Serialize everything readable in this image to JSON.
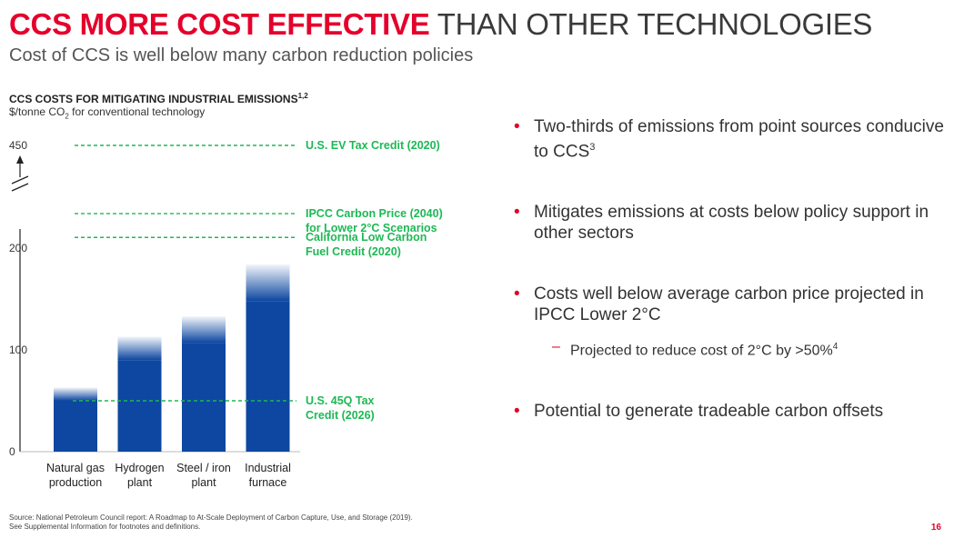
{
  "header": {
    "title_strong": "CCS MORE COST EFFECTIVE",
    "title_light": "THAN OTHER TECHNOLOGIES",
    "subtitle": "Cost of CCS is well below many carbon reduction policies"
  },
  "chart_data": {
    "type": "bar",
    "title": "CCS COSTS FOR MITIGATING INDUSTRIAL EMISSIONS",
    "title_sup": "1,2",
    "unit_prefix": "$/tonne CO",
    "unit_sub": "2",
    "unit_suffix": " for conventional technology",
    "categories": [
      [
        "Natural gas",
        "production"
      ],
      [
        "Hydrogen",
        "plant"
      ],
      [
        "Steel / iron",
        "plant"
      ],
      [
        "Industrial",
        "furnace"
      ]
    ],
    "values_low": [
      50,
      90,
      107,
      148
    ],
    "values_high": [
      63,
      113,
      133,
      184
    ],
    "y_ticks": [
      {
        "value": 0,
        "label": "0"
      },
      {
        "value": 100,
        "label": "100"
      },
      {
        "value": 200,
        "label": "200"
      },
      {
        "value": 450,
        "label": "450"
      }
    ],
    "axis_break": true,
    "reference_lines": [
      {
        "value": 50,
        "lines": [
          "U.S. 45Q Tax",
          "Credit (2026)"
        ]
      },
      {
        "value": 226,
        "lines": [
          "California Low Carbon",
          "Fuel Credit (2020)"
        ]
      },
      {
        "value": 284,
        "lines": [
          "IPCC Carbon Price (2040)",
          "for Lower 2°C Scenarios"
        ]
      },
      {
        "value": 450,
        "lines": [
          "U.S. EV Tax Credit (2020)"
        ]
      }
    ],
    "colors": {
      "bar": "#0d47a1",
      "bar_light": "#ffffff",
      "reference": "#1db954"
    }
  },
  "bullets": [
    {
      "text": "Two-thirds of emissions from point sources conducive to CCS",
      "sup": "3"
    },
    {
      "text": "Mitigates emissions at costs below policy support in other sectors",
      "sup": ""
    },
    {
      "text": "Costs well below average carbon price projected in IPCC Lower 2°C",
      "sup": "",
      "sub": {
        "text": "Projected to reduce cost of 2°C by >50%",
        "sup": "4"
      }
    },
    {
      "text": "Potential to generate tradeable carbon offsets",
      "sup": ""
    }
  ],
  "bullet_marker": "•",
  "sub_marker": "–",
  "footnotes": [
    "Source: National Petroleum Council report: A Roadmap to At-Scale Deployment of Carbon Capture, Use, and Storage (2019).",
    "See Supplemental Information for footnotes and definitions."
  ],
  "page_number": "16"
}
